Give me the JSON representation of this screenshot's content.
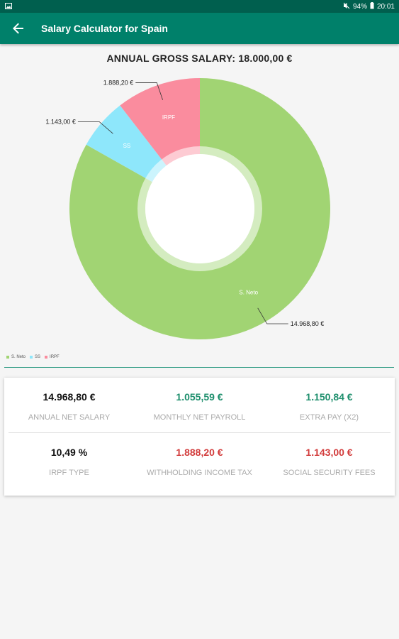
{
  "status_bar": {
    "battery": "94%",
    "time": "20:01"
  },
  "app_bar": {
    "title": "Salary Calculator for Spain"
  },
  "gross": {
    "text": "ANNUAL GROSS SALARY: 18.000,00 €"
  },
  "chart_data": {
    "type": "pie",
    "style": "donut",
    "categories": [
      "S. Neto",
      "SS",
      "IRPF"
    ],
    "values": [
      14968.8,
      1143.0,
      1888.2
    ],
    "value_labels": [
      "14.968,80 €",
      "1.143,00 €",
      "1.888,20 €"
    ],
    "slice_labels": [
      "S. Neto",
      "SS",
      "IRPF"
    ],
    "colors": [
      "#a1d473",
      "#8ee7fb",
      "#fa8c9e"
    ],
    "legend": "bottom-left"
  },
  "results": {
    "annual_net": {
      "value": "14.968,80 €",
      "label": "ANNUAL NET SALARY"
    },
    "monthly_net": {
      "value": "1.055,59 €",
      "label": "MONTHLY NET PAYROLL"
    },
    "extra_pay": {
      "value": "1.150,84 €",
      "label": "EXTRA PAY (X2)"
    },
    "irpf_type": {
      "value": "10,49 %",
      "label": "IRPF TYPE"
    },
    "withholding": {
      "value": "1.888,20 €",
      "label": "WITHHOLDING INCOME TAX"
    },
    "social_security": {
      "value": "1.143,00 €",
      "label": "SOCIAL SECURITY FEES"
    }
  }
}
